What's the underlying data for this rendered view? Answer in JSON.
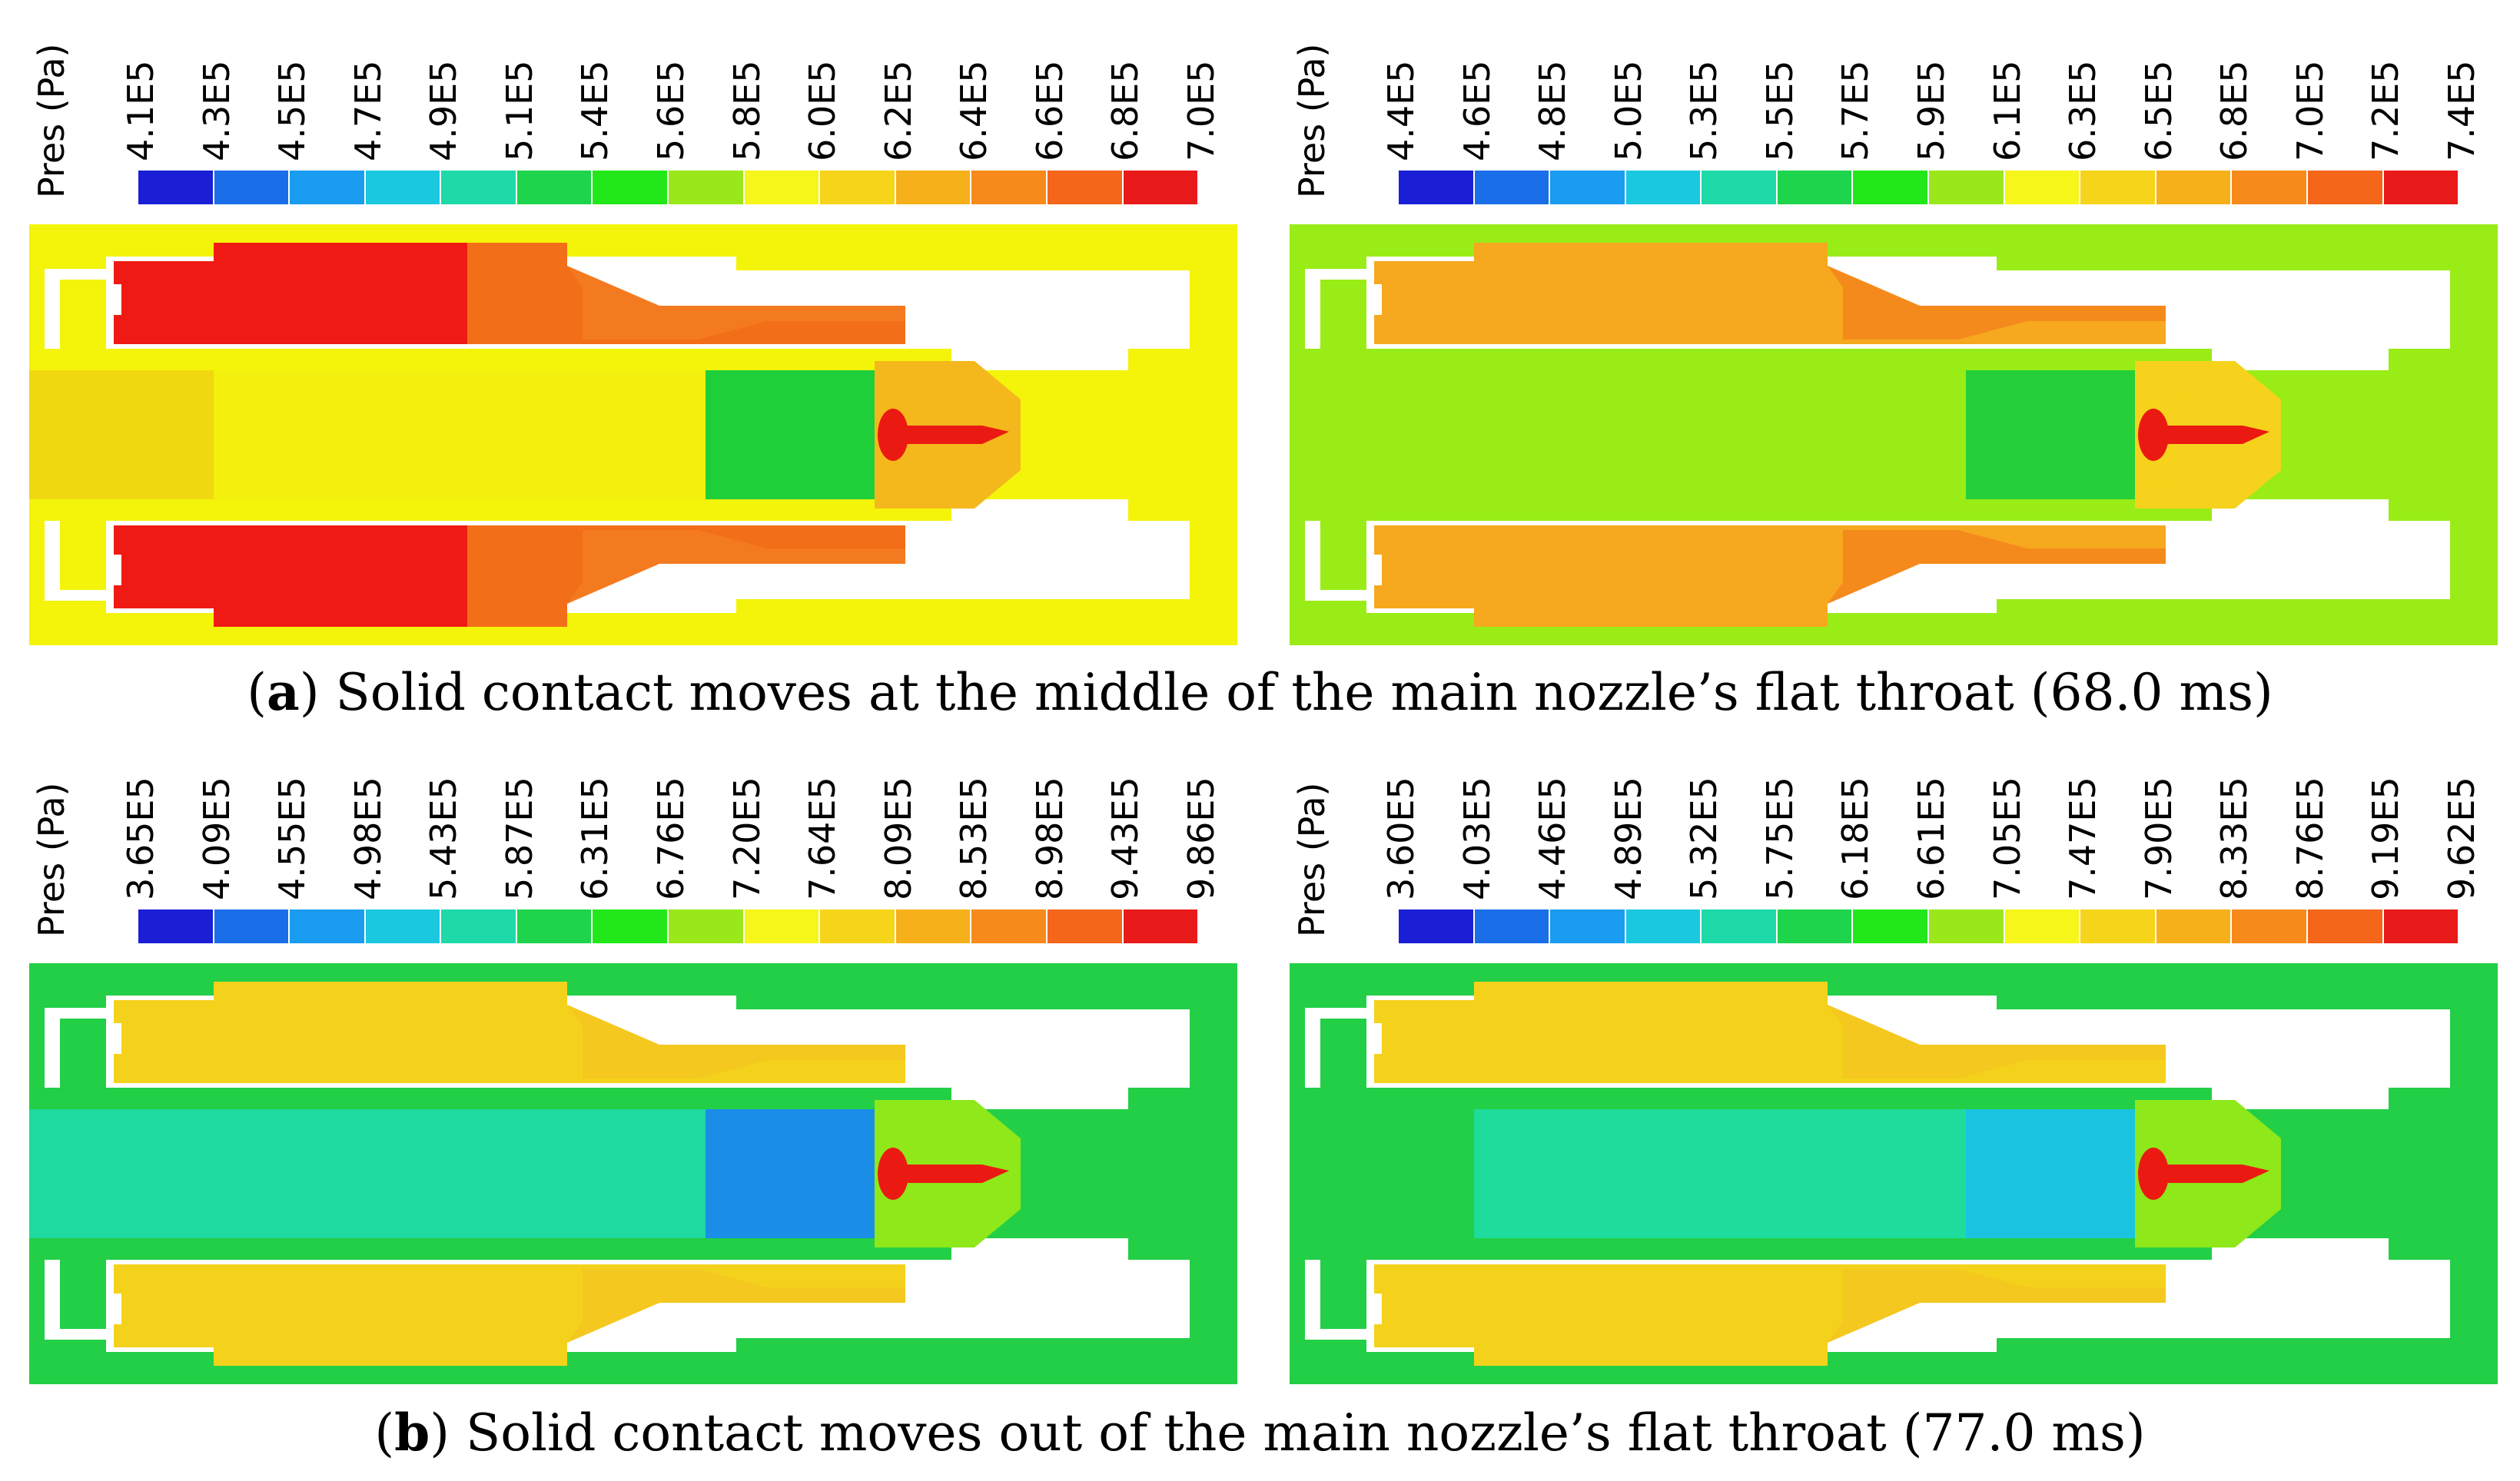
{
  "figure": {
    "captions": [
      {
        "letter": "a",
        "text": ") Solid contact moves at the middle of the main nozzle’s flat throat (68.0 ms)",
        "open": "("
      },
      {
        "letter": "b",
        "text": ") Solid contact moves out of the main nozzle’s flat throat (77.0 ms)",
        "open": "("
      }
    ],
    "panels": [
      {
        "legend_title": "Pres (Pa)",
        "ticks": [
          "4.1E5",
          "4.3E5",
          "4.5E5",
          "4.7E5",
          "4.9E5",
          "5.1E5",
          "5.4E5",
          "5.6E5",
          "5.8E5",
          "6.0E5",
          "6.2E5",
          "6.4E5",
          "6.6E5",
          "6.8E5",
          "7.0E5"
        ],
        "colors": {
          "background": "#f3f40a",
          "chambers": "#ef1a14",
          "chamber_steps": "#f36e18",
          "ducts": "#f47a20",
          "core": "#f2f00c",
          "core_left": "#f0d810",
          "contact": "#1fcf3a",
          "throat": "#f4b81c",
          "jet": "#ea1a12"
        }
      },
      {
        "legend_title": "Pres (Pa)",
        "ticks": [
          "4.4E5",
          "4.6E5",
          "4.8E5",
          "5.0E5",
          "5.3E5",
          "5.5E5",
          "5.7E5",
          "5.9E5",
          "6.1E5",
          "6.3E5",
          "6.5E5",
          "6.8E5",
          "7.0E5",
          "7.2E5",
          "7.4E5"
        ],
        "colors": {
          "background": "#9aec16",
          "chambers": "#f6a81e",
          "chamber_steps": "#f6a81e",
          "ducts": "#f58a1c",
          "core": "#9aec16",
          "core_left": "#9aec16",
          "contact": "#24cf3a",
          "throat": "#f6d21c",
          "jet": "#ea1a12"
        }
      },
      {
        "legend_title": "Pres (Pa)",
        "ticks": [
          "3.65E5",
          "4.09E5",
          "4.55E5",
          "4.98E5",
          "5.43E5",
          "5.87E5",
          "6.31E5",
          "6.76E5",
          "7.20E5",
          "7.64E5",
          "8.09E5",
          "8.53E5",
          "8.98E5",
          "9.43E5",
          "9.86E5"
        ],
        "colors": {
          "background": "#22cf46",
          "chambers": "#f4d21c",
          "chamber_steps": "#f4d21c",
          "ducts": "#f4c81e",
          "core": "#1ed9a0",
          "core_left": "#1ed9a0",
          "contact": "#1a8ee6",
          "throat": "#8ee81a",
          "jet": "#ea1a12"
        }
      },
      {
        "legend_title": "Pres (Pa)",
        "ticks": [
          "3.60E5",
          "4.03E5",
          "4.46E5",
          "4.89E5",
          "5.32E5",
          "5.75E5",
          "6.18E5",
          "6.61E5",
          "7.05E5",
          "7.47E5",
          "7.90E5",
          "8.33E5",
          "8.76E5",
          "9.19E5",
          "9.62E5"
        ],
        "colors": {
          "background": "#22cf46",
          "chambers": "#f4d21c",
          "chamber_steps": "#f4d21c",
          "ducts": "#f4c81e",
          "core": "#1edc9c",
          "core_left": "#22cf46",
          "contact": "#1ac4e0",
          "throat": "#8ee81a",
          "jet": "#ea1a12"
        }
      }
    ],
    "colorbar": [
      "#1a1fd6",
      "#1a6ee8",
      "#1a9cf0",
      "#1ac8e0",
      "#1edaa8",
      "#1ed44c",
      "#22e81a",
      "#9ae81a",
      "#f6f61a",
      "#f6d41a",
      "#f6b01a",
      "#f68a1a",
      "#f4661a",
      "#e81a1a"
    ]
  }
}
